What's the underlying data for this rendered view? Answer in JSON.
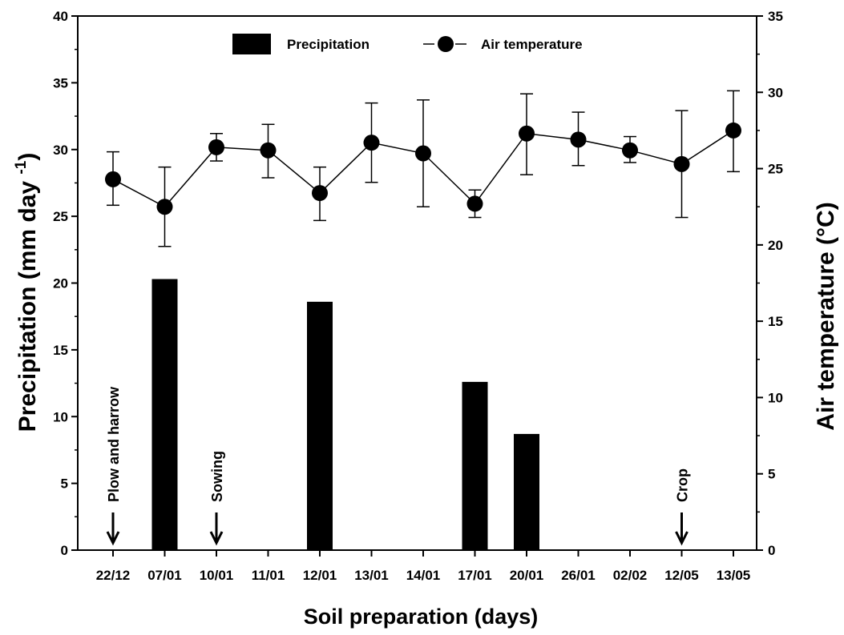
{
  "chart_data": {
    "type": "bar+line",
    "categories": [
      "22/12",
      "07/01",
      "10/01",
      "11/01",
      "12/01",
      "13/01",
      "14/01",
      "17/01",
      "20/01",
      "26/01",
      "02/02",
      "12/05",
      "13/05"
    ],
    "series": [
      {
        "name": "Precipitation",
        "type": "bar",
        "axis": "left",
        "values": [
          0,
          20.3,
          0,
          0,
          18.6,
          0,
          0,
          12.6,
          8.7,
          0,
          0,
          0,
          0
        ]
      },
      {
        "name": "Air temperature",
        "type": "line",
        "axis": "right",
        "values": [
          24.3,
          22.5,
          26.4,
          26.2,
          23.4,
          26.7,
          26.0,
          22.7,
          27.3,
          26.9,
          26.2,
          25.3,
          27.5
        ],
        "error_low": [
          22.6,
          19.9,
          25.5,
          24.4,
          21.6,
          24.1,
          22.5,
          21.8,
          24.6,
          25.2,
          25.4,
          21.8,
          24.8
        ],
        "error_high": [
          26.1,
          25.1,
          27.3,
          27.9,
          25.1,
          29.3,
          29.5,
          23.6,
          29.9,
          28.7,
          27.1,
          28.8,
          30.1
        ]
      }
    ],
    "ylabel": "Precipitation (mm day",
    "ylabel_sup": "-1",
    "ylabel_close": ")",
    "y2label": "Air temperature (°C)",
    "xlabel": "Soil preparation (days)",
    "ylim": [
      0,
      40
    ],
    "y2lim": [
      0,
      35
    ],
    "yticks": [
      0,
      5,
      10,
      15,
      20,
      25,
      30,
      35,
      40
    ],
    "y2ticks": [
      0,
      5,
      10,
      15,
      20,
      25,
      30,
      35
    ],
    "legend": {
      "position": "top-center",
      "entries": [
        "Precipitation",
        "Air temperature"
      ]
    },
    "annotations": [
      {
        "text": "Plow and harrow",
        "category_index": 0
      },
      {
        "text": "Sowing",
        "category_index": 2
      },
      {
        "text": "Crop",
        "category_index": 11
      }
    ],
    "grid": false
  }
}
